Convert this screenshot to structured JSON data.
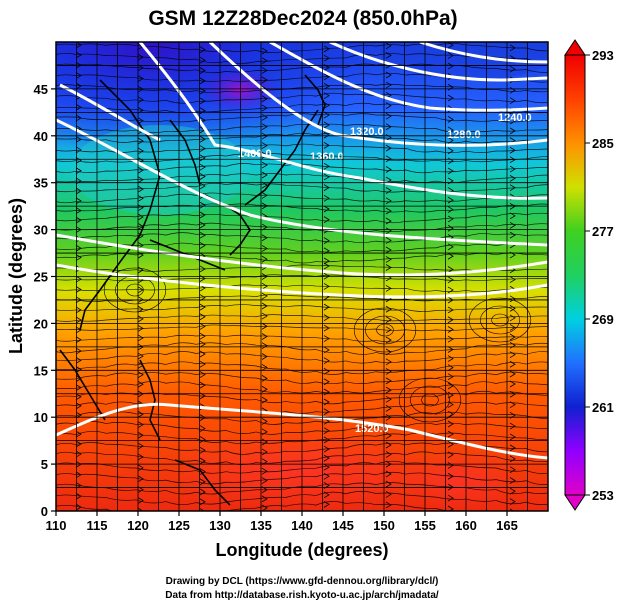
{
  "title": "GSM 12Z28Dec2024 (850.0hPa)",
  "x_axis": {
    "label": "Longitude (degrees)",
    "range": [
      110,
      170
    ],
    "ticks": [
      "110",
      "115",
      "120",
      "125",
      "130",
      "135",
      "140",
      "145",
      "150",
      "155",
      "160",
      "165"
    ]
  },
  "y_axis": {
    "label": "Latitude  (degrees)",
    "range": [
      0,
      50
    ],
    "ticks": [
      "0",
      "5",
      "10",
      "15",
      "20",
      "25",
      "30",
      "35",
      "40",
      "45"
    ]
  },
  "colorbar": {
    "range": [
      253,
      293
    ],
    "labels": [
      "293",
      "285",
      "277",
      "269",
      "261",
      "253"
    ]
  },
  "contours": [
    {
      "label": "1400.0"
    },
    {
      "label": "1360.0"
    },
    {
      "label": "1320.0"
    },
    {
      "label": "1280.0"
    },
    {
      "label": "1240.0"
    },
    {
      "label": "1520.0"
    }
  ],
  "credits": {
    "line1": "Drawing by DCL (https://www.gfd-dennou.org/library/dcl/)",
    "line2": "Data from http://database.rish.kyoto-u.ac.jp/arch/jmadata/"
  }
}
